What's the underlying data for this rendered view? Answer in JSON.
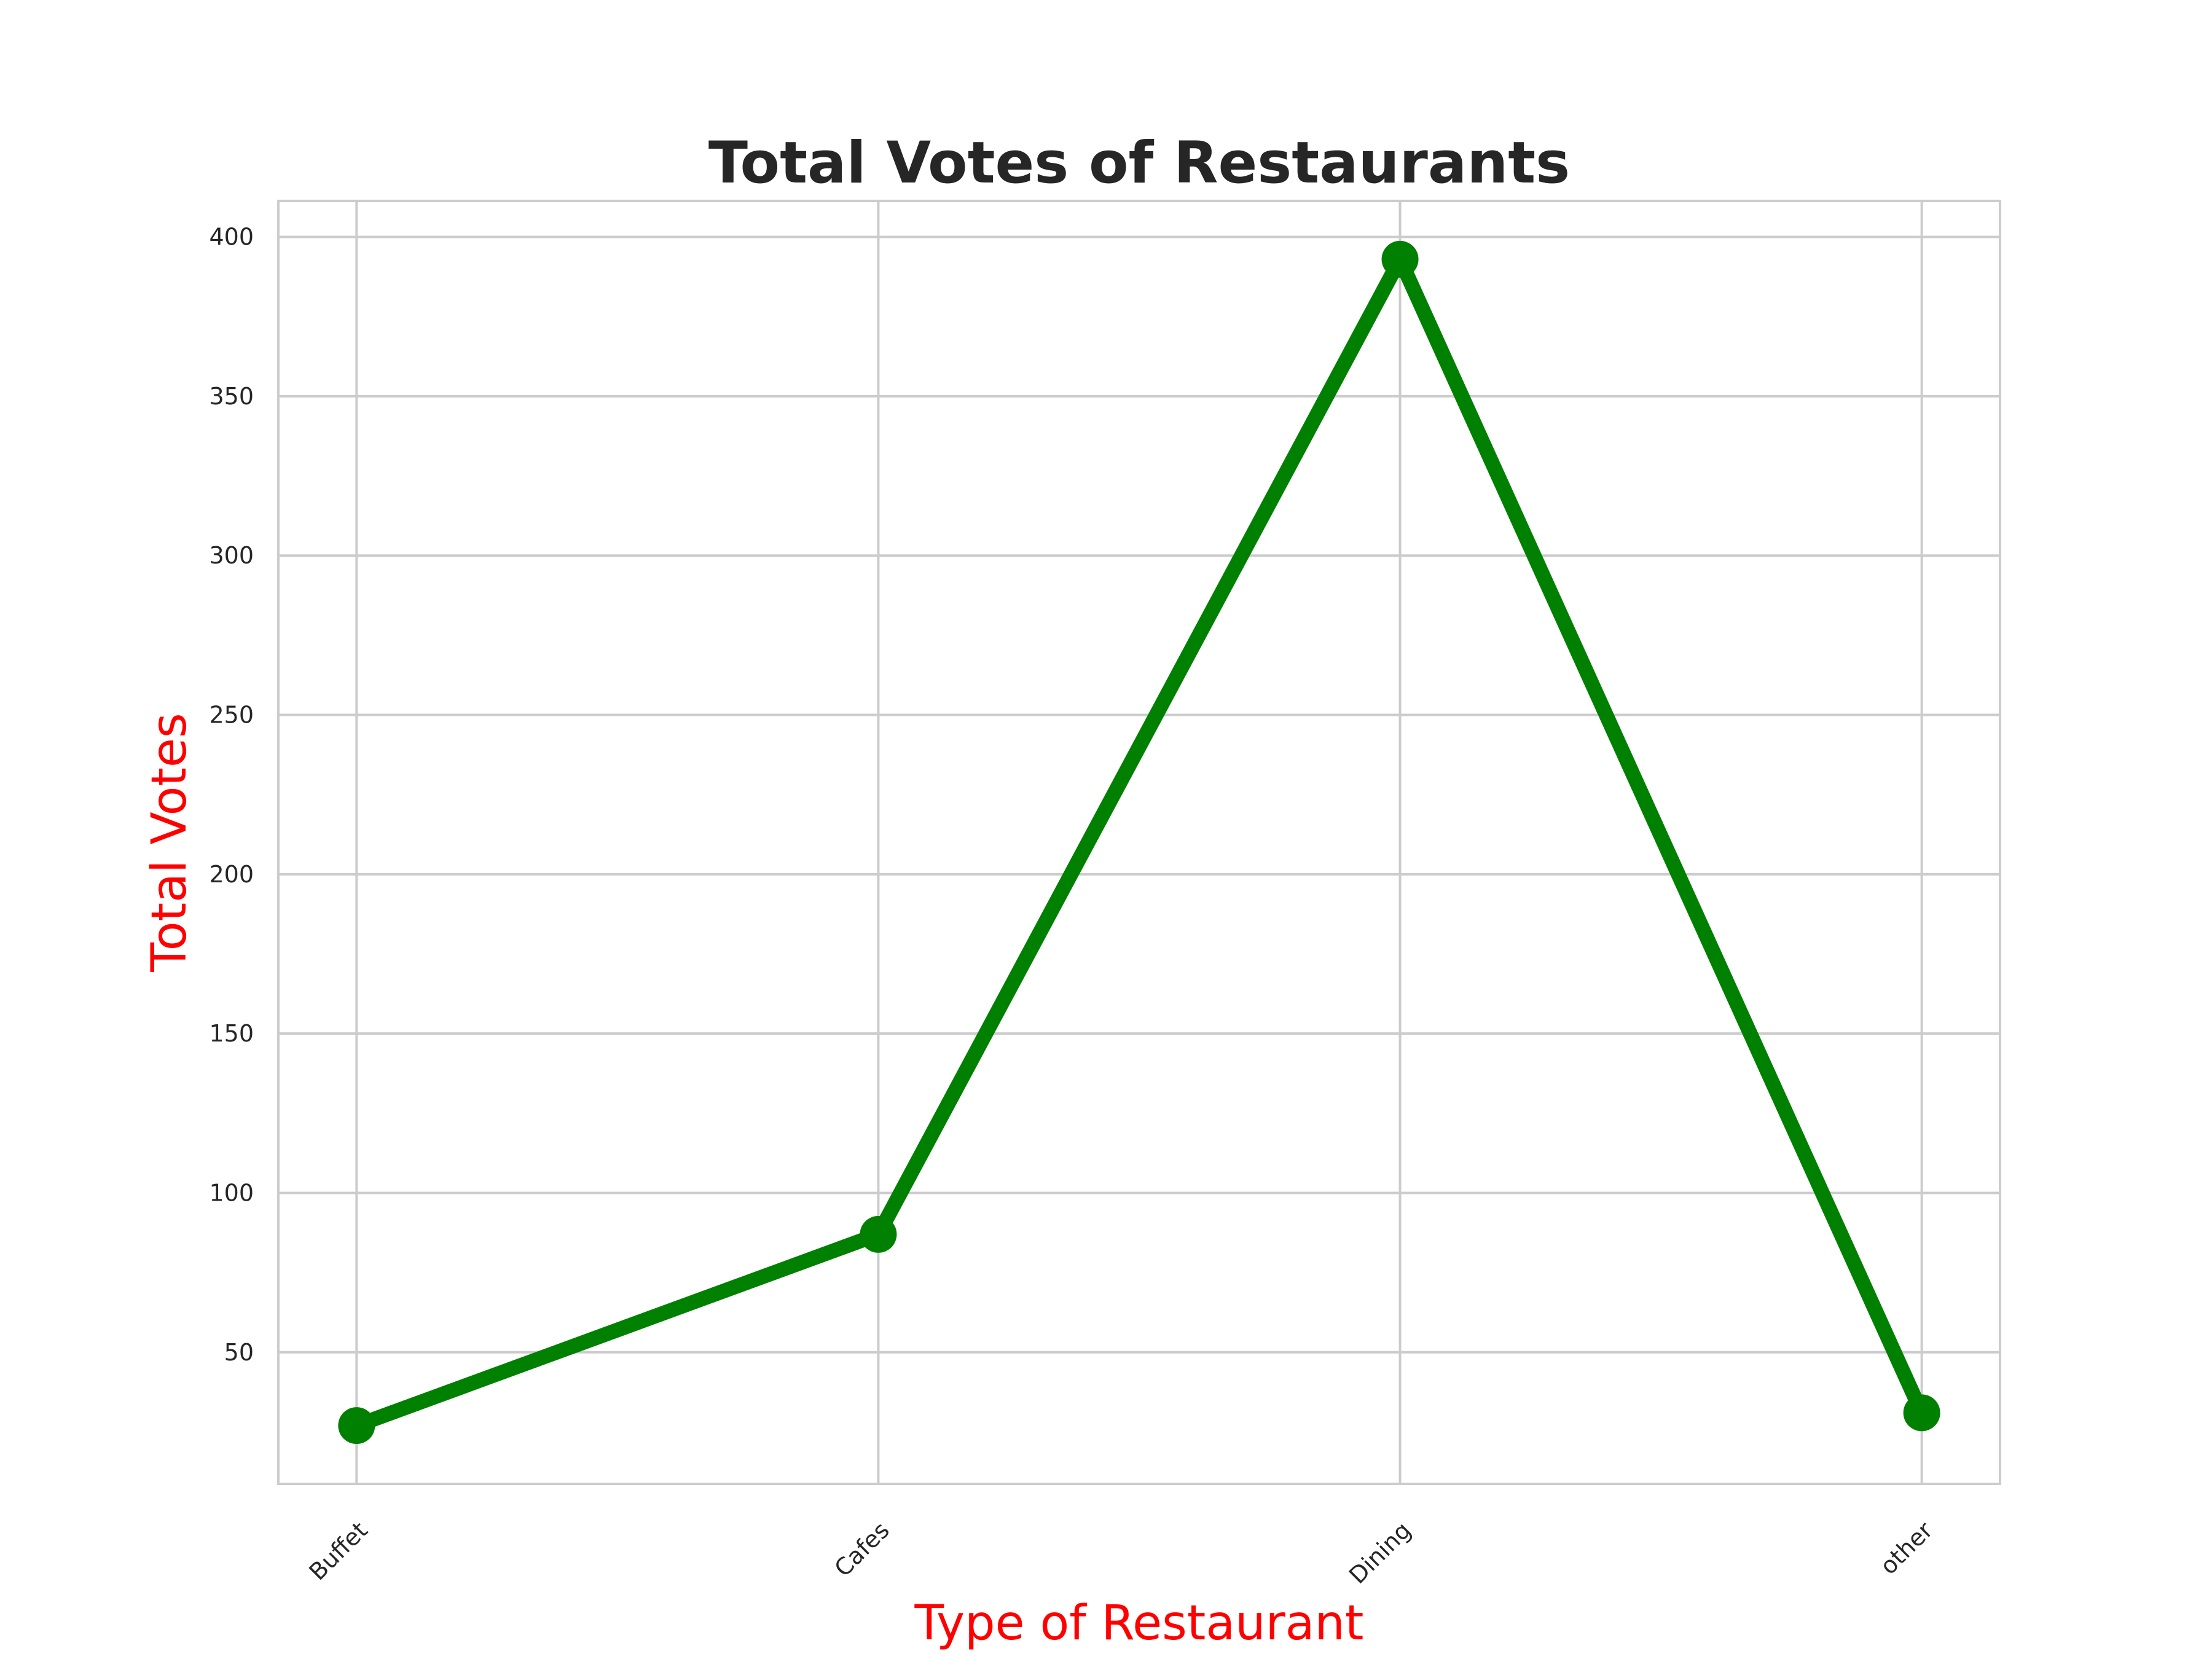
{
  "chart_data": {
    "type": "line",
    "title": "Total Votes of Restaurants",
    "xlabel": "Type of Restaurant",
    "ylabel": "Total Votes",
    "categories": [
      "Buffet",
      "Cafes",
      "Dining",
      "other"
    ],
    "series": [
      {
        "values": [
          27,
          87,
          393,
          31
        ]
      }
    ],
    "ylim": [
      8.7,
      411.3
    ],
    "yticks": [
      50,
      100,
      150,
      200,
      250,
      300,
      350,
      400
    ],
    "grid": true,
    "line_color": "#008000",
    "label_color": "#ff0000",
    "marker": "circle"
  }
}
